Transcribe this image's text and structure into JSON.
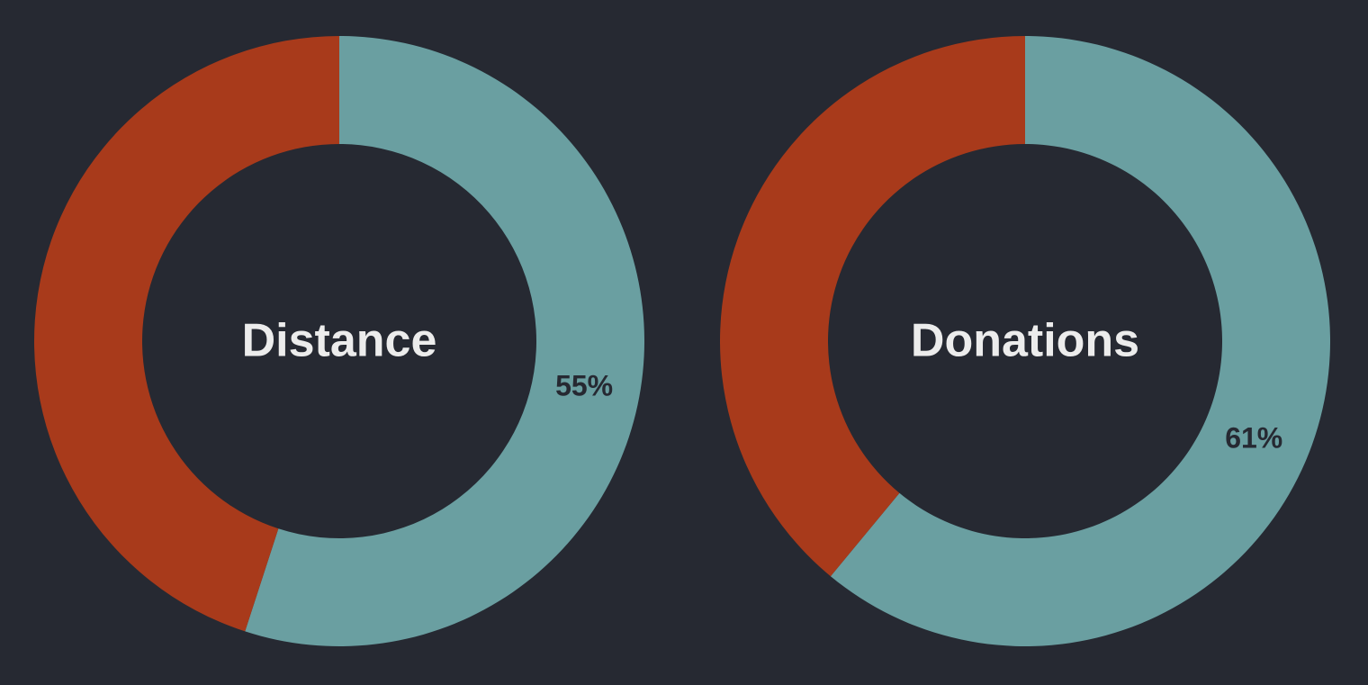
{
  "colors": {
    "background": "#262932",
    "filled": "#6a9fa1",
    "remainder": "#a83a1b",
    "center_text": "#ececec",
    "percent_text": "#262932"
  },
  "chart_data": [
    {
      "type": "pie",
      "style": "donut",
      "center_label": "Distance",
      "value_percent": 55,
      "value_label": "55%",
      "slices": [
        {
          "value": 55,
          "color": "#6a9fa1"
        },
        {
          "value": 45,
          "color": "#a83a1b"
        }
      ]
    },
    {
      "type": "pie",
      "style": "donut",
      "center_label": "Donations",
      "value_percent": 61,
      "value_label": "61%",
      "slices": [
        {
          "value": 61,
          "color": "#6a9fa1"
        },
        {
          "value": 39,
          "color": "#a83a1b"
        }
      ]
    }
  ]
}
